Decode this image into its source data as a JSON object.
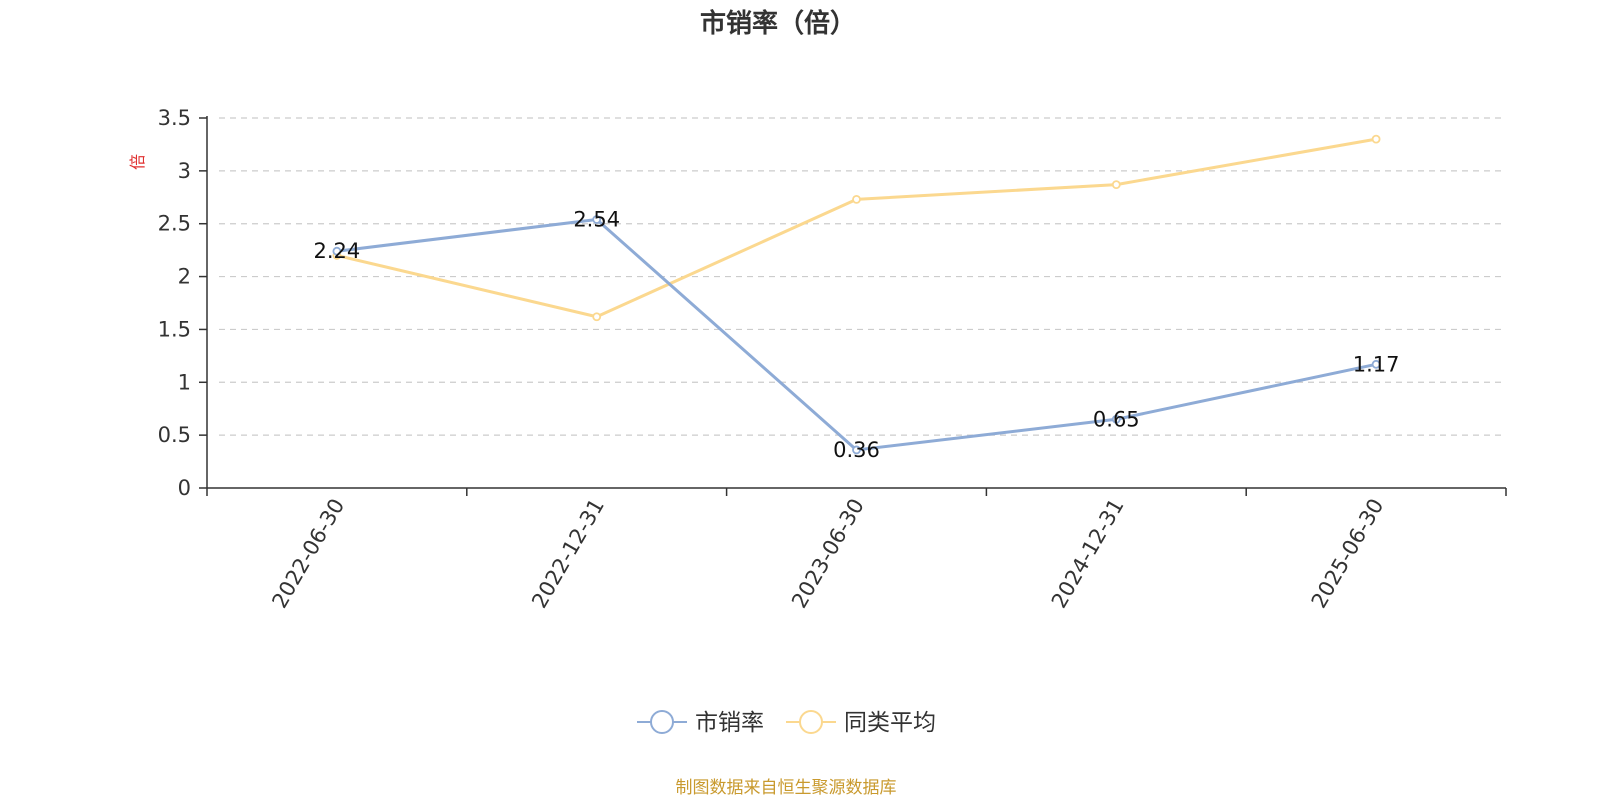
{
  "chart_data": {
    "type": "line",
    "title": "市销率（倍）",
    "ylabel": "倍",
    "categories": [
      "2022-06-30",
      "2022-12-31",
      "2023-06-30",
      "2024-12-31",
      "2025-06-30"
    ],
    "ylim": [
      0,
      3.5
    ],
    "yticks": [
      "0",
      "0.5",
      "1",
      "1.5",
      "2",
      "2.5",
      "3",
      "3.5"
    ],
    "grid": true,
    "legend_position": "bottom-center",
    "series": [
      {
        "name": "市销率",
        "values": [
          2.24,
          2.54,
          0.36,
          0.65,
          1.17
        ],
        "labels": [
          "2.24",
          "2.54",
          "0.36",
          "0.65",
          "1.17"
        ],
        "color": "#8eabd6"
      },
      {
        "name": "同类平均",
        "values": [
          2.2,
          1.62,
          2.73,
          2.87,
          3.3
        ],
        "color": "#fbd88f"
      }
    ]
  },
  "source_text": "制图数据来自恒生聚源数据库",
  "colors": {
    "axis": "#333333",
    "grid": "#cccccc",
    "unit": "#e03030",
    "source": "#c99a2e"
  }
}
